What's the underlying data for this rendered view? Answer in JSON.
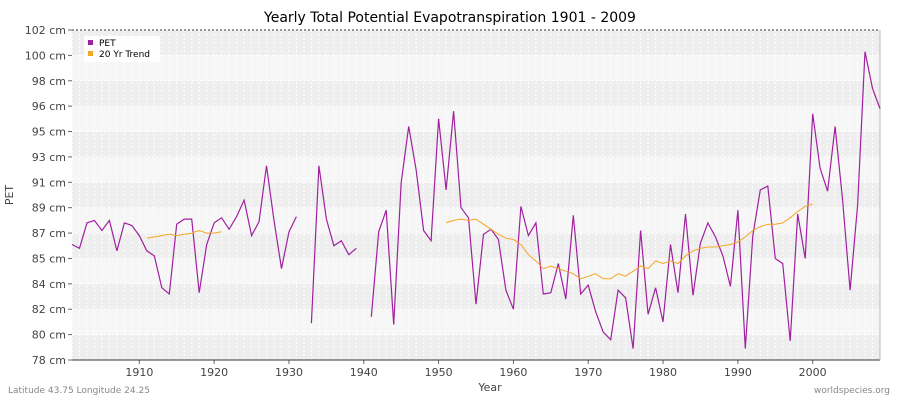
{
  "chart_data": {
    "type": "line",
    "title": "Yearly Total Potential Evapotranspiration 1901 - 2009",
    "xlabel": "Year",
    "ylabel": "PET",
    "xlim": [
      1901,
      2009
    ],
    "x_ticks": [
      1910,
      1920,
      1930,
      1940,
      1950,
      1960,
      1970,
      1980,
      1990,
      2000
    ],
    "y_tick_labels": [
      "78 cm",
      "80 cm",
      "82 cm",
      "84 cm",
      "85 cm",
      "87 cm",
      "89 cm",
      "91 cm",
      "93 cm",
      "95 cm",
      "96 cm",
      "98 cm",
      "100 cm",
      "102 cm"
    ],
    "y_ticks_label_at_index": true,
    "grid": true,
    "legend_position": "top-left",
    "series": [
      {
        "name": "PET",
        "color": "#a020a0",
        "x_start": 1901,
        "values": [
          86.1,
          85.8,
          87.8,
          88.0,
          87.2,
          88.0,
          85.6,
          87.8,
          87.6,
          86.8,
          85.6,
          85.2,
          83.7,
          83.2,
          87.7,
          88.1,
          88.1,
          83.3,
          86.1,
          87.8,
          88.2,
          87.3,
          88.3,
          89.6,
          86.8,
          87.9,
          92.3,
          88.0,
          84.6,
          87.1,
          88.3,
          null,
          80.9,
          92.3,
          88.1,
          86.0,
          86.4,
          85.3,
          85.8,
          null,
          81.4,
          87.1,
          88.8,
          80.8,
          91.0,
          95.2,
          92.0,
          87.2,
          86.4,
          95.5,
          90.4,
          95.8,
          89.0,
          88.2,
          82.4,
          86.9,
          87.3,
          86.5,
          83.5,
          82.0,
          89.1,
          86.8,
          87.8,
          83.2,
          83.3,
          84.8,
          82.8,
          88.4,
          83.2,
          83.9,
          81.8,
          80.2,
          79.6,
          83.5,
          82.9,
          78.9,
          87.2,
          81.6,
          83.7,
          81.0,
          86.1,
          83.3,
          88.5,
          83.1,
          86.2,
          87.8,
          86.7,
          85.2,
          83.8,
          88.8,
          78.9,
          86.8,
          90.4,
          90.7,
          85.0,
          84.8,
          79.5,
          88.5,
          85.0,
          95.7,
          92.1,
          90.3,
          95.2,
          89.6,
          83.5,
          89.2,
          100.3,
          97.4,
          95.9
        ]
      },
      {
        "name": "20 Yr Trend",
        "color": "#f5a623",
        "x_start": 1911,
        "values": [
          86.6,
          86.7,
          86.8,
          86.9,
          86.8,
          86.9,
          87.0,
          87.2,
          87.0,
          87.0,
          87.1,
          null,
          null,
          null,
          null,
          null,
          null,
          null,
          null,
          null,
          null,
          null,
          null,
          null,
          null,
          null,
          null,
          null,
          null,
          null,
          null,
          null,
          null,
          null,
          null,
          null,
          null,
          null,
          null,
          null,
          87.8,
          88.0,
          88.1,
          88.0,
          88.1,
          87.7,
          87.3,
          86.9,
          86.6,
          86.5,
          86.1,
          85.3,
          84.9,
          84.6,
          84.7,
          84.6,
          84.5,
          84.4,
          84.2,
          84.3,
          84.4,
          84.2,
          84.2,
          84.4,
          84.3,
          84.5,
          84.7,
          84.6,
          84.9,
          84.8,
          84.9,
          84.8,
          85.2,
          85.6,
          85.8,
          85.9,
          85.9,
          86.0,
          86.1,
          86.3,
          86.7,
          87.2,
          87.5,
          87.7,
          87.7,
          87.8,
          88.2,
          88.7,
          89.1,
          89.3
        ]
      }
    ],
    "footer_left": "Latitude 43.75 Longitude 24.25",
    "footer_right": "worldspecies.org"
  }
}
